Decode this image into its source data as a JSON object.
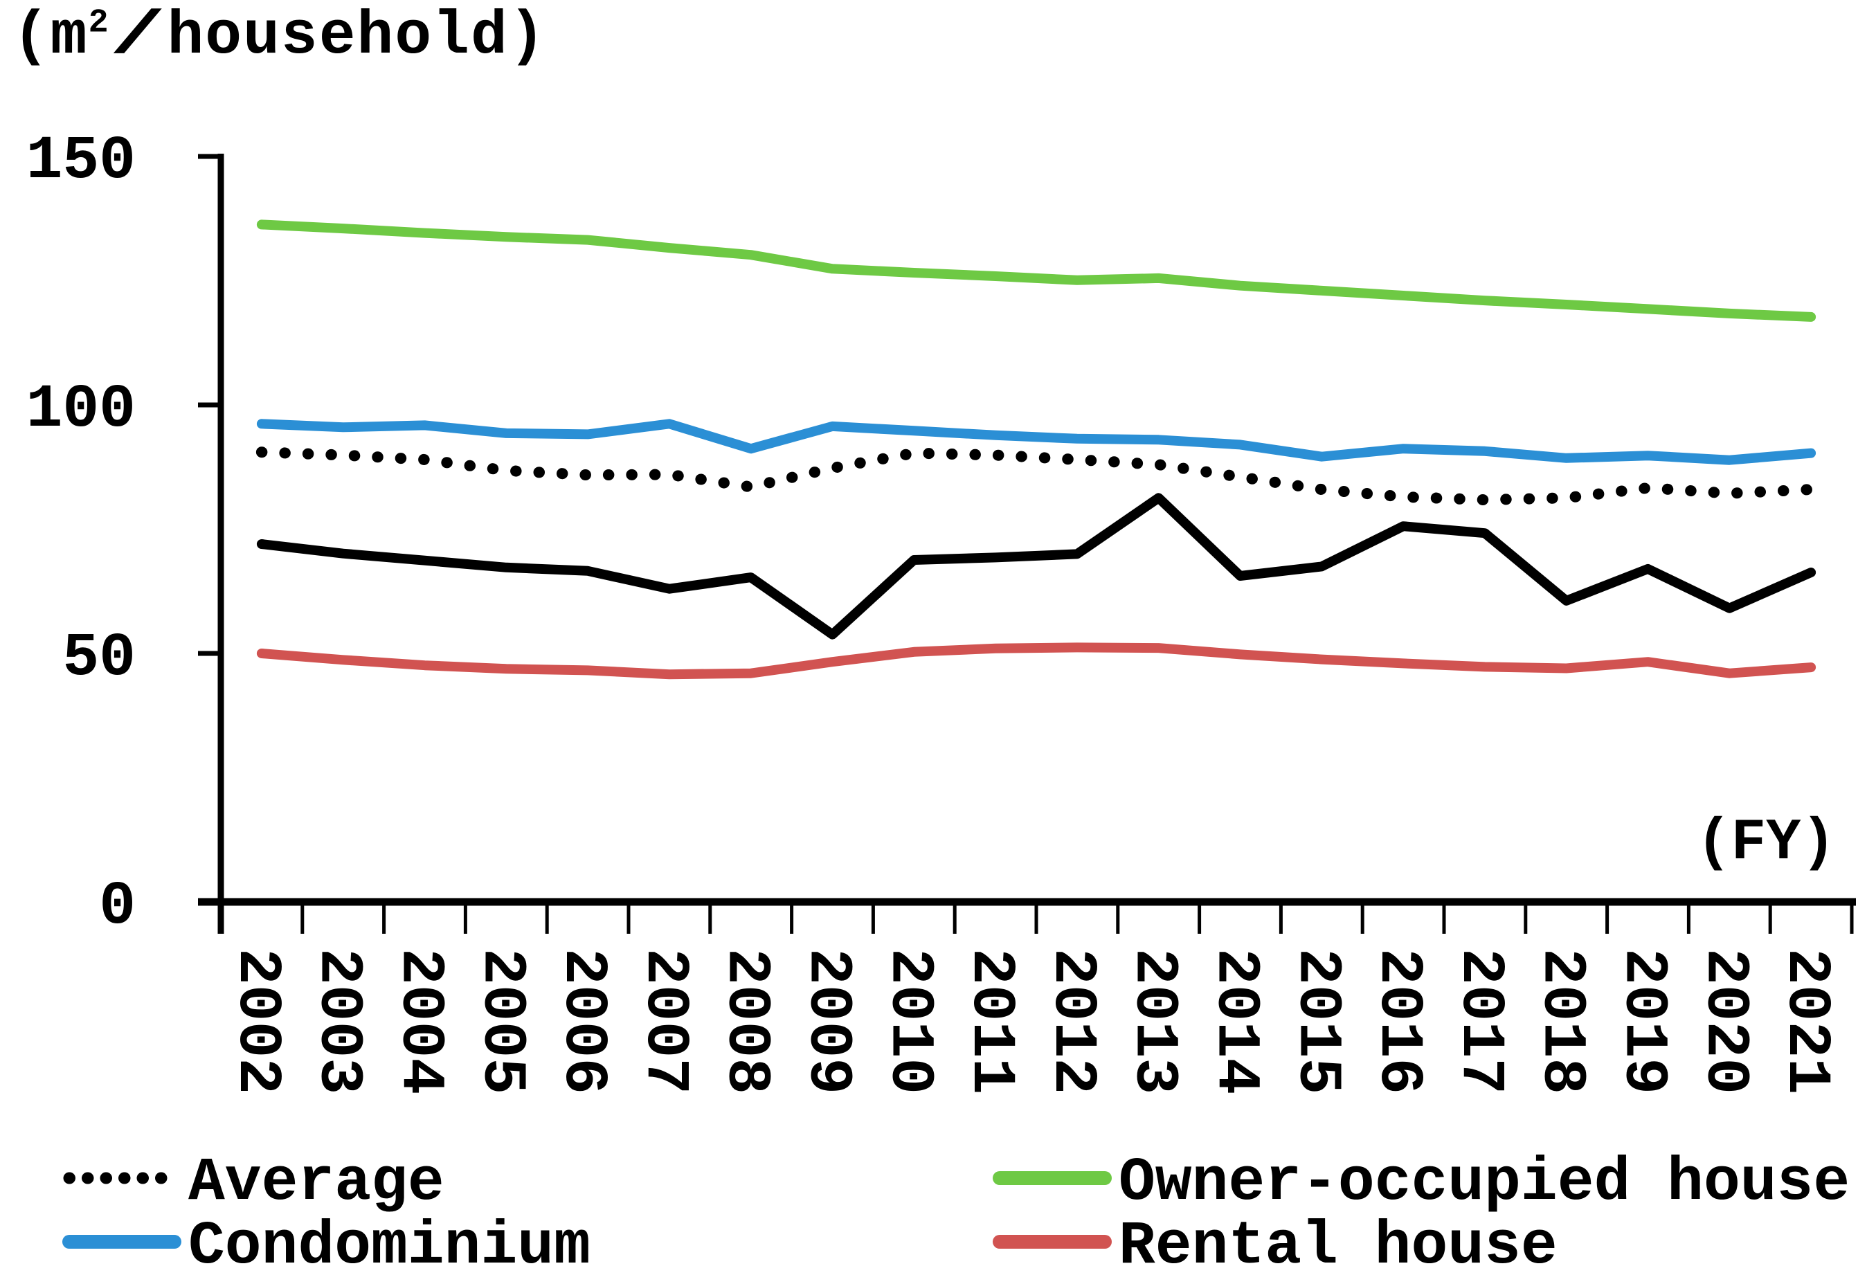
{
  "unit_label": {
    "open": "(m",
    "sup": "2",
    "slash": "/",
    "rest": "household)"
  },
  "fy_label": "(FY)",
  "legend": [
    {
      "label": "Average",
      "color": "#000000",
      "style": "dotted"
    },
    {
      "label": "Condominium",
      "color": "#2B8FD5",
      "style": "solid"
    },
    {
      "label": "Owner-occupied house",
      "color": "#6EC944",
      "style": "solid"
    },
    {
      "label": "Rental house",
      "color": "#D15351",
      "style": "solid"
    }
  ],
  "chart_data": {
    "type": "line",
    "title": "",
    "xlabel": "(FY)",
    "ylabel": "(m2/household)",
    "x": [
      2002,
      2003,
      2004,
      2005,
      2006,
      2007,
      2008,
      2009,
      2010,
      2011,
      2012,
      2013,
      2014,
      2015,
      2016,
      2017,
      2018,
      2019,
      2020,
      2021
    ],
    "ylim": [
      0,
      150
    ],
    "yticks": [
      0,
      50,
      100,
      150
    ],
    "grid": false,
    "legend_position": "bottom",
    "series": [
      {
        "name": "Owner-occupied house",
        "color": "#6EC944",
        "style": "solid",
        "values": [
          136.3,
          135.5,
          134.6,
          133.8,
          133.2,
          131.6,
          130.2,
          127.4,
          126.6,
          125.9,
          125.1,
          125.5,
          124.0,
          123.0,
          122.0,
          121.0,
          120.2,
          119.3,
          118.4,
          117.7
        ]
      },
      {
        "name": "Condominium",
        "color": "#2B8FD5",
        "style": "solid",
        "values": [
          96.2,
          95.5,
          95.9,
          94.3,
          94.1,
          96.2,
          91.2,
          95.7,
          94.8,
          93.9,
          93.2,
          93.0,
          92.0,
          89.6,
          91.2,
          90.7,
          89.3,
          89.8,
          88.9,
          90.3
        ]
      },
      {
        "name": "Average",
        "color": "#000000",
        "style": "dotted",
        "values": [
          90.5,
          89.9,
          89.0,
          86.8,
          85.9,
          86.0,
          83.5,
          87.3,
          90.3,
          89.9,
          89.0,
          88.0,
          85.5,
          83.0,
          81.5,
          80.9,
          81.3,
          83.3,
          82.2,
          83.0
        ]
      },
      {
        "name": "",
        "note": "unlabeled solid black line (no legend entry)",
        "color": "#000000",
        "style": "solid",
        "values": [
          72.0,
          70.1,
          68.7,
          67.3,
          66.6,
          63.0,
          65.3,
          53.8,
          68.8,
          69.3,
          70.0,
          81.3,
          65.6,
          67.5,
          75.6,
          74.2,
          60.6,
          67.0,
          59.1,
          66.3
        ]
      },
      {
        "name": "Rental house",
        "color": "#D15351",
        "style": "solid",
        "values": [
          50.0,
          48.7,
          47.6,
          46.9,
          46.6,
          45.8,
          46.0,
          48.3,
          50.3,
          51.0,
          51.2,
          51.1,
          49.8,
          48.8,
          48.0,
          47.3,
          47.0,
          48.3,
          46.0,
          47.2
        ]
      }
    ]
  }
}
